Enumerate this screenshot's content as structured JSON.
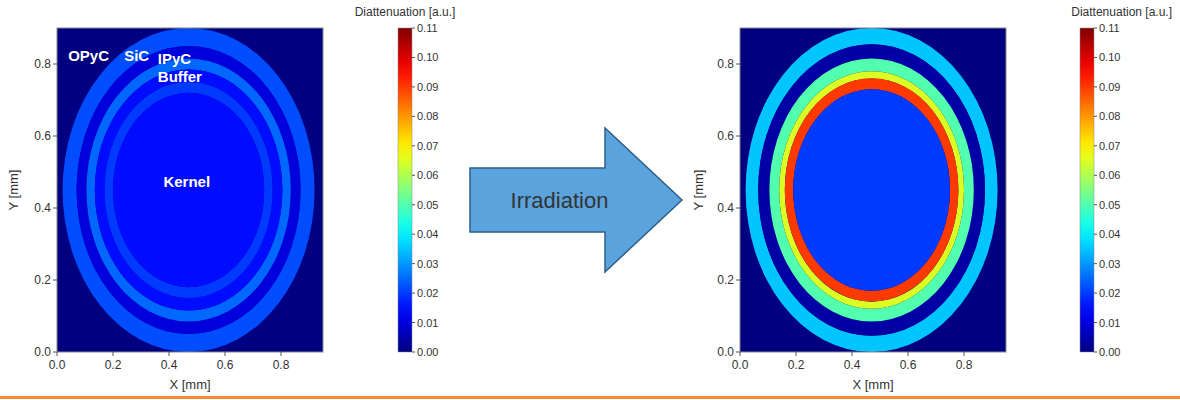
{
  "chart_data": [
    {
      "type": "heatmap",
      "x_label": "X [mm]",
      "y_label": "Y [mm]",
      "xlim": [
        0,
        0.95
      ],
      "ylim": [
        0,
        0.9
      ],
      "xticks": [
        {
          "value": 0,
          "label": "0.0"
        },
        0.2,
        0.4,
        0.6,
        0.8
      ],
      "yticks": [
        {
          "value": 0,
          "label": "0.0"
        },
        0.2,
        0.4,
        0.6,
        0.8
      ],
      "center": [
        0.47,
        0.45
      ],
      "rings": [
        {
          "r_inner": 0.4,
          "r_outer": 0.45,
          "value": 0.022
        },
        {
          "r_inner": 0.365,
          "r_outer": 0.4,
          "value": 0.01
        },
        {
          "r_inner": 0.335,
          "r_outer": 0.365,
          "value": 0.025
        },
        {
          "r_inner": 0.3,
          "r_outer": 0.335,
          "value": 0.015
        },
        {
          "r_inner": 0.27,
          "r_outer": 0.3,
          "value": 0.02
        },
        {
          "r_inner": 0,
          "r_outer": 0.27,
          "value": 0.015
        }
      ],
      "color_label": "Diattenuation [a.u.]",
      "color_range": [
        0,
        0.11
      ],
      "color_ticks": [
        {
          "value": 0,
          "label": "0.00"
        },
        0.01,
        0.02,
        0.03,
        0.04,
        0.05,
        0.06,
        0.07,
        0.08,
        0.09,
        {
          "value": 0.1,
          "label": "0.10"
        },
        0.11
      ],
      "annotations": [
        {
          "text": "OPyC",
          "x": 0.04,
          "y": 0.82
        },
        {
          "text": "SiC",
          "x": 0.24,
          "y": 0.82
        },
        {
          "text": "IPyC",
          "x": 0.36,
          "y": 0.81
        },
        {
          "text": "Buffer",
          "x": 0.36,
          "y": 0.76
        },
        {
          "text": "Kernel",
          "x": 0.38,
          "y": 0.47
        }
      ]
    },
    {
      "type": "heatmap",
      "x_label": "X [mm]",
      "y_label": "Y [mm]",
      "xlim": [
        0,
        0.95
      ],
      "ylim": [
        0,
        0.9
      ],
      "xticks": [
        {
          "value": 0,
          "label": "0.0"
        },
        0.2,
        0.4,
        0.6,
        0.8
      ],
      "yticks": [
        {
          "value": 0,
          "label": "0.0"
        },
        0.2,
        0.4,
        0.6,
        0.8
      ],
      "center": [
        0.47,
        0.45
      ],
      "rings": [
        {
          "r_inner": 0.405,
          "r_outer": 0.45,
          "value": 0.035
        },
        {
          "r_inner": 0.365,
          "r_outer": 0.405,
          "value": 0.004
        },
        {
          "r_inner": 0.33,
          "r_outer": 0.365,
          "value": 0.05
        },
        {
          "r_inner": 0.31,
          "r_outer": 0.33,
          "value": 0.065
        },
        {
          "r_inner": 0.28,
          "r_outer": 0.31,
          "value": 0.09
        },
        {
          "r_inner": 0,
          "r_outer": 0.28,
          "value": 0.02
        }
      ],
      "color_label": "Diattenuation [a.u.]",
      "color_range": [
        0,
        0.11
      ],
      "color_ticks": [
        {
          "value": 0,
          "label": "0.00"
        },
        0.01,
        0.02,
        0.03,
        0.04,
        0.05,
        0.06,
        0.07,
        0.08,
        0.09,
        {
          "value": 0.1,
          "label": "0.10"
        },
        0.11
      ]
    }
  ],
  "arrow": {
    "label": "Irradiation"
  }
}
